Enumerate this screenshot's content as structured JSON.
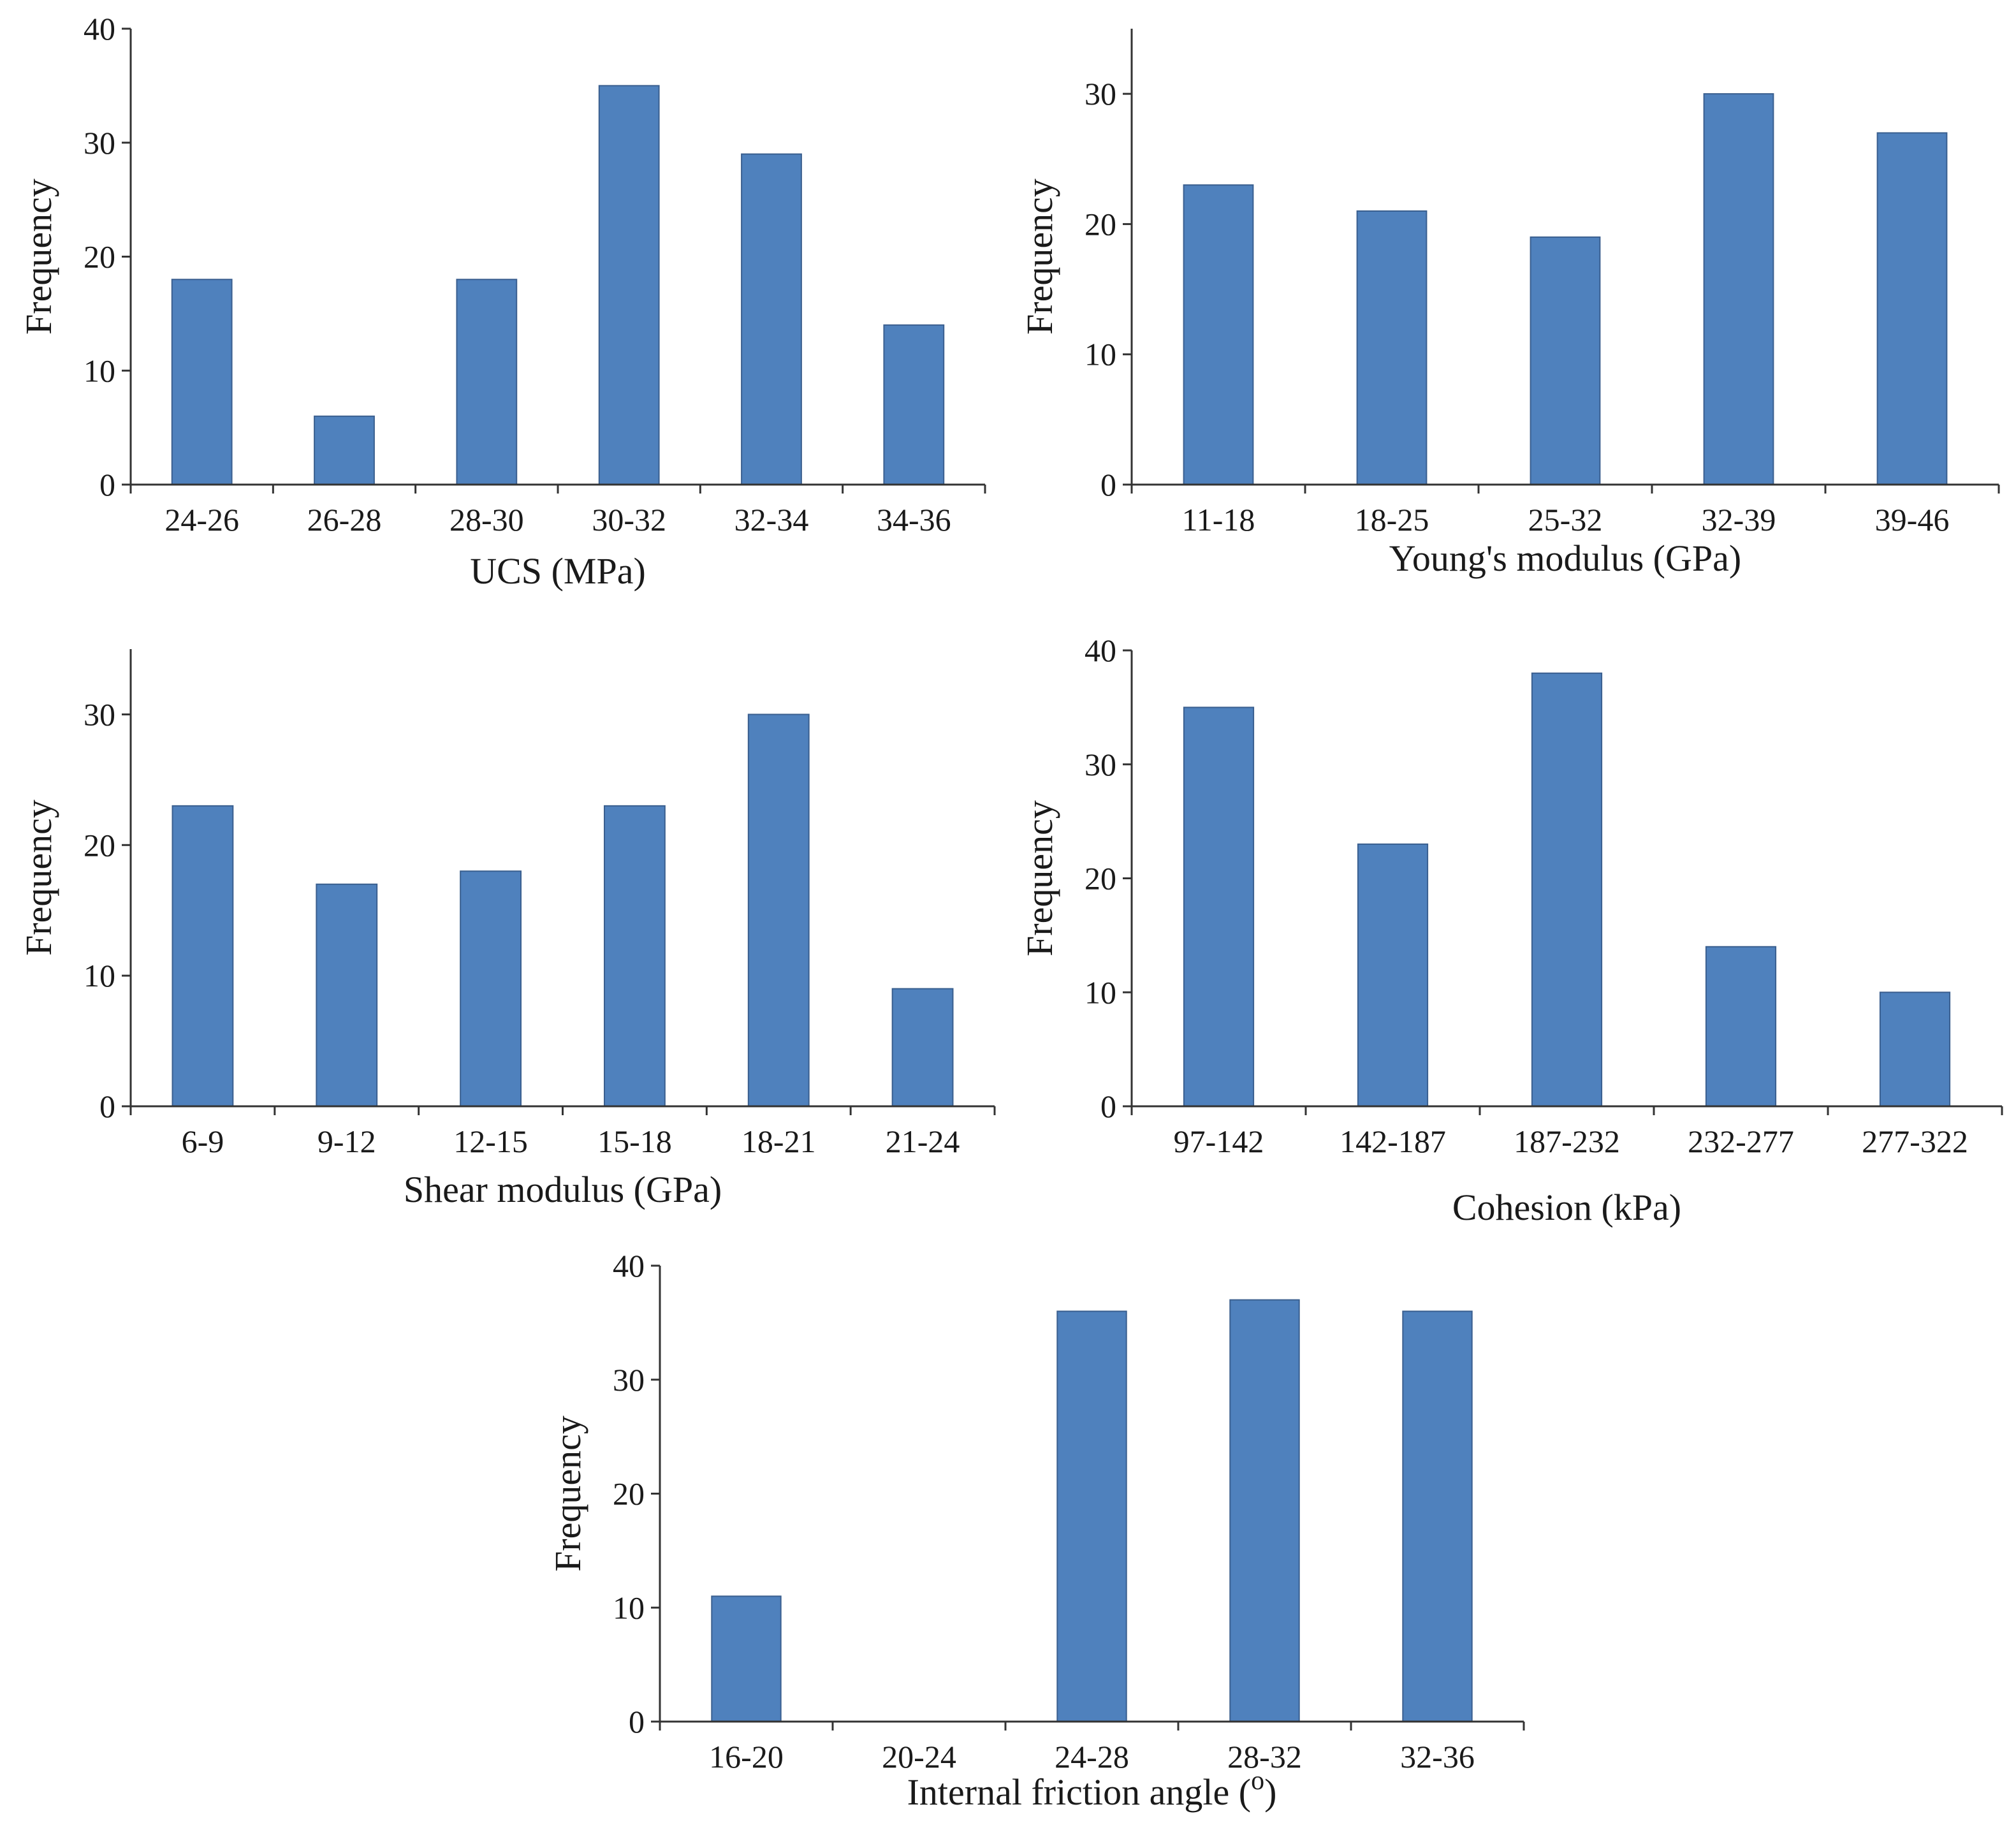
{
  "chart_data": [
    {
      "type": "bar",
      "title": "",
      "xlabel": "UCS (MPa)",
      "ylabel": "Frequency",
      "categories": [
        "24-26",
        "26-28",
        "28-30",
        "30-32",
        "32-34",
        "34-36"
      ],
      "values": [
        18,
        6,
        18,
        35,
        29,
        14
      ],
      "ylim": [
        0,
        40
      ],
      "yticks": [
        0,
        10,
        20,
        30,
        40
      ],
      "grid": false,
      "legend": "none",
      "color": "#4f81bd"
    },
    {
      "type": "bar",
      "title": "",
      "xlabel": "Young's modulus (GPa)",
      "ylabel": "Frequency",
      "categories": [
        "11-18",
        "18-25",
        "25-32",
        "32-39",
        "39-46"
      ],
      "values": [
        23,
        21,
        19,
        30,
        27
      ],
      "ylim": [
        0,
        35
      ],
      "yticks": [
        0,
        10,
        20,
        30
      ],
      "grid": false,
      "legend": "none",
      "color": "#4f81bd"
    },
    {
      "type": "bar",
      "title": "",
      "xlabel": "Shear modulus (GPa)",
      "ylabel": "Frequency",
      "categories": [
        "6-9",
        "9-12",
        "12-15",
        "15-18",
        "18-21",
        "21-24"
      ],
      "values": [
        23,
        17,
        18,
        23,
        30,
        9
      ],
      "ylim": [
        0,
        35
      ],
      "yticks": [
        0,
        10,
        20,
        30
      ],
      "grid": false,
      "legend": "none",
      "color": "#4f81bd"
    },
    {
      "type": "bar",
      "title": "",
      "xlabel": "Cohesion (kPa)",
      "ylabel": "Frequency",
      "categories": [
        "97-142",
        "142-187",
        "187-232",
        "232-277",
        "277-322"
      ],
      "values": [
        35,
        23,
        38,
        14,
        10
      ],
      "ylim": [
        0,
        40
      ],
      "yticks": [
        0,
        10,
        20,
        30,
        40
      ],
      "grid": false,
      "legend": "none",
      "color": "#4f81bd"
    },
    {
      "type": "bar",
      "title": "",
      "xlabel": "Internal friction angle (",
      "xlabel_superscript": "o",
      "xlabel_suffix": ")",
      "ylabel": "Frequency",
      "categories": [
        "16-20",
        "20-24",
        "24-28",
        "28-32",
        "32-36"
      ],
      "values": [
        11,
        0,
        36,
        37,
        36
      ],
      "ylim": [
        0,
        40
      ],
      "yticks": [
        0,
        10,
        20,
        30,
        40
      ],
      "grid": false,
      "legend": "none",
      "color": "#4f81bd"
    }
  ]
}
